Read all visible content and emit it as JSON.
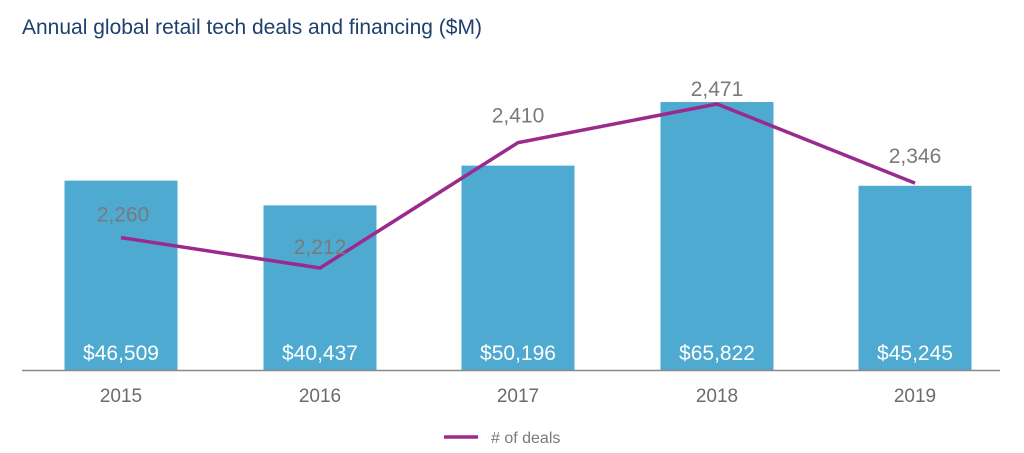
{
  "chart_data": {
    "type": "bar",
    "title": "Annual global retail tech deals and financing ($M)",
    "categories": [
      "2015",
      "2016",
      "2017",
      "2018",
      "2019"
    ],
    "series": [
      {
        "name": "Financing ($M)",
        "type": "bar",
        "values": [
          46509,
          40437,
          50196,
          65822,
          45245
        ],
        "labels": [
          "$46,509",
          "$40,437",
          "$50,196",
          "$65,822",
          "$45,245"
        ],
        "color": "#4eaad1"
      },
      {
        "name": "# of deals",
        "type": "line",
        "values": [
          2260,
          2212,
          2410,
          2471,
          2346
        ],
        "labels": [
          "2,260",
          "2,212",
          "2,410",
          "2,471",
          "2,346"
        ],
        "color": "#9b2a8e"
      }
    ],
    "xlabel": "",
    "ylabel": "",
    "grid": false,
    "legend": {
      "entries": [
        "# of deals"
      ],
      "placement": "bottom-center"
    }
  }
}
